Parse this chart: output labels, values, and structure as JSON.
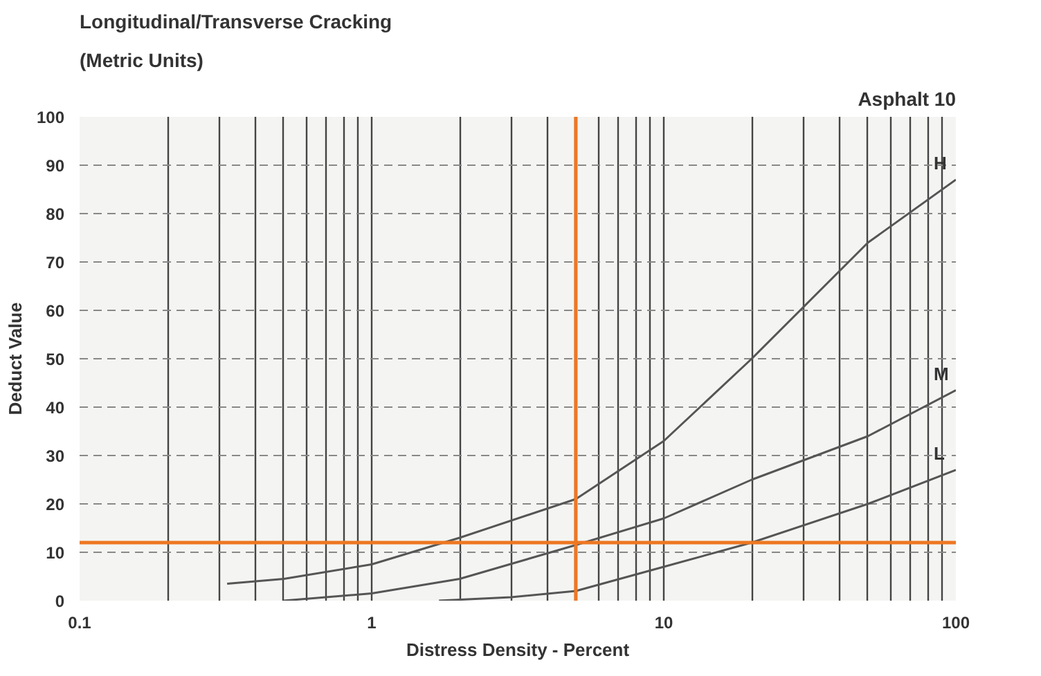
{
  "chart_data": {
    "type": "line",
    "title": "Longitudinal/Transverse Cracking",
    "subtitle": "(Metric Units)",
    "annotations": [
      "Asphalt 10"
    ],
    "xlabel": "Distress Density - Percent",
    "ylabel": "Deduct Value",
    "log": "x",
    "xlim": [
      0.1,
      100
    ],
    "ylim": [
      0,
      100
    ],
    "xticks": [
      {
        "value": 0.1,
        "label": "0.1"
      },
      {
        "value": 0.2,
        "label": null
      },
      {
        "value": 0.3,
        "label": null
      },
      {
        "value": 0.4,
        "label": null
      },
      {
        "value": 0.5,
        "label": null
      },
      {
        "value": 0.6,
        "label": null
      },
      {
        "value": 0.7,
        "label": null
      },
      {
        "value": 0.8,
        "label": null
      },
      {
        "value": 0.9,
        "label": null
      },
      1,
      {
        "value": 2,
        "label": null
      },
      {
        "value": 3,
        "label": null
      },
      {
        "value": 4,
        "label": null
      },
      {
        "value": 5,
        "label": null
      },
      {
        "value": 6,
        "label": null
      },
      {
        "value": 7,
        "label": null
      },
      {
        "value": 8,
        "label": null
      },
      {
        "value": 9,
        "label": null
      },
      10,
      {
        "value": 20,
        "label": null
      },
      {
        "value": 30,
        "label": null
      },
      {
        "value": 40,
        "label": null
      },
      {
        "value": 50,
        "label": null
      },
      {
        "value": 60,
        "label": null
      },
      {
        "value": 70,
        "label": null
      },
      {
        "value": 80,
        "label": null
      },
      {
        "value": 90,
        "label": null
      },
      100
    ],
    "yticks": [
      0,
      10,
      20,
      30,
      40,
      50,
      60,
      70,
      80,
      90,
      100
    ],
    "grid": true,
    "series": [
      {
        "name": "H",
        "color": "#555555",
        "x": [
          0.32,
          0.5,
          1,
          2,
          5,
          10,
          20,
          50,
          100
        ],
        "values": [
          3.5,
          4.5,
          7.5,
          13,
          21,
          33,
          50,
          74,
          87
        ]
      },
      {
        "name": "M",
        "color": "#555555",
        "x": [
          0.5,
          1,
          2,
          5,
          10,
          20,
          50,
          100
        ],
        "values": [
          0,
          1.5,
          4.5,
          11.5,
          17,
          25,
          34,
          43.5
        ]
      },
      {
        "name": "L",
        "color": "#555555",
        "x": [
          1.7,
          3,
          5,
          10,
          20,
          50,
          100
        ],
        "values": [
          0,
          0.7,
          2,
          7,
          12,
          20,
          27
        ]
      }
    ],
    "ref_lines": [
      {
        "axis": "x",
        "value": 5,
        "label": null,
        "color": "#ee7722"
      },
      {
        "axis": "y",
        "value": 12,
        "label": null,
        "color": "#ee7722"
      }
    ]
  }
}
